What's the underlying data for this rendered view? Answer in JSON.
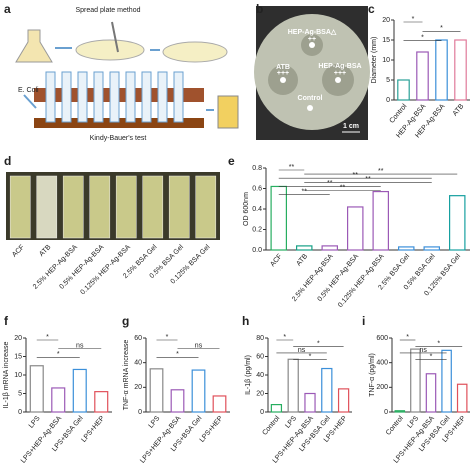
{
  "panel_labels": [
    "a",
    "b",
    "c",
    "d",
    "e",
    "f",
    "g",
    "h",
    "i"
  ],
  "panel_a": {
    "method": "Spread plate method",
    "bacteria": "E. Coli",
    "test": "Kindy-Bauer's test"
  },
  "panel_b": {
    "labels": [
      "HEP-Ag-BSA△",
      "++",
      "ATB",
      "+++",
      "HEP-Ag-BSA",
      "+++",
      "Control"
    ],
    "scale": "1 cm"
  },
  "panel_d": {
    "labels": [
      "ACF",
      "ATB",
      "2.5% HEP-Ag-BSA",
      "0.5% HEP-Ag-BSA",
      "0.125% HEP-Ag-BSA",
      "2.5% BSA Gel",
      "0.5% BSA Gel",
      "0.125% BSA Gel"
    ]
  },
  "chart_data": [
    {
      "type": "bar",
      "ylabel": "Diameter (mm)",
      "categories": [
        "Control",
        "HEP-Ag-BSA",
        "HEP-Ag-BSA",
        "ATB"
      ],
      "values": [
        5,
        12,
        15,
        15
      ],
      "colors": [
        "#2aa198",
        "#9b59b6",
        "#3b8fd9",
        "#e07a9a"
      ],
      "ylim": [
        0,
        20
      ],
      "yticks": [
        0,
        5,
        10,
        15,
        20
      ],
      "annotations": [
        "*",
        "*",
        "*"
      ]
    },
    {
      "type": "bar",
      "ylabel": "OD 600nm",
      "categories": [
        "ACF",
        "ATB",
        "2.5% HEP-Ag-BSA",
        "0.5% HEP-Ag-BSA",
        "0.125% HEP-Ag-BSA",
        "2.5% BSA Gel",
        "0.5% BSA Gel",
        "0.125% BSA Gel"
      ],
      "values": [
        0.62,
        0.04,
        0.04,
        0.42,
        0.57,
        0.03,
        0.03,
        0.53
      ],
      "colors": [
        "#27ae60",
        "#16a085",
        "#9b59b6",
        "#9b59b6",
        "#9b59b6",
        "#3b8fd9",
        "#3b8fd9",
        "#16a0a0"
      ],
      "ylim": [
        0,
        0.8
      ],
      "yticks": [
        {
          "value": 0,
          "label": "0.0"
        },
        0.2,
        0.4,
        0.6,
        0.8
      ],
      "annotations": [
        "**",
        "**",
        "**",
        "**",
        "**",
        "**",
        "**"
      ]
    },
    {
      "type": "bar",
      "ylabel": "IL-1β mRNA increase",
      "categories": [
        "LPS",
        "LPS+HEP-Ag-BSA",
        "LPS+BSA Gel",
        "LPS+HEP"
      ],
      "values": [
        12.5,
        6.5,
        11.5,
        5.5
      ],
      "colors": [
        "#888888",
        "#9b59b6",
        "#3b8fd9",
        "#e0505a"
      ],
      "ylim": [
        0,
        20
      ],
      "yticks": [
        0,
        5,
        10,
        15,
        20
      ],
      "annotations": [
        "*",
        "ns",
        "*"
      ]
    },
    {
      "type": "bar",
      "ylabel": "TNF-α mRNA increase",
      "categories": [
        "LPS",
        "LPS+HEP-Ag-BSA",
        "LPS+BSA Gel",
        "LPS+HEP"
      ],
      "values": [
        35,
        18,
        34,
        13
      ],
      "colors": [
        "#888888",
        "#9b59b6",
        "#3b8fd9",
        "#e0505a"
      ],
      "ylim": [
        0,
        60
      ],
      "yticks": [
        0,
        20,
        40,
        60
      ],
      "annotations": [
        "*",
        "ns",
        "*"
      ]
    },
    {
      "type": "bar",
      "ylabel": "IL-1β (pg/ml)",
      "categories": [
        "Control",
        "LPS",
        "LPS+HEP-Ag-BSA",
        "LPS+BSA Gel",
        "LPS+HEP"
      ],
      "values": [
        8,
        57,
        20,
        47,
        25
      ],
      "colors": [
        "#27ae60",
        "#888888",
        "#9b59b6",
        "#3b8fd9",
        "#e0505a"
      ],
      "ylim": [
        0,
        80
      ],
      "yticks": [
        0,
        20,
        40,
        60,
        80
      ],
      "annotations": [
        "*",
        "*",
        "ns",
        "*"
      ]
    },
    {
      "type": "bar",
      "ylabel": "TNF-α (pg/ml)",
      "categories": [
        "Control",
        "LPS",
        "LPS+HEP-Ag-BSA",
        "LPS+BSA Gel",
        "LPS+HEP"
      ],
      "values": [
        10,
        510,
        310,
        500,
        225
      ],
      "colors": [
        "#27ae60",
        "#888888",
        "#9b59b6",
        "#3b8fd9",
        "#e0505a"
      ],
      "ylim": [
        0,
        600
      ],
      "yticks": [
        0,
        200,
        400,
        600
      ],
      "annotations": [
        "*",
        "*",
        "ns",
        "*"
      ]
    }
  ]
}
